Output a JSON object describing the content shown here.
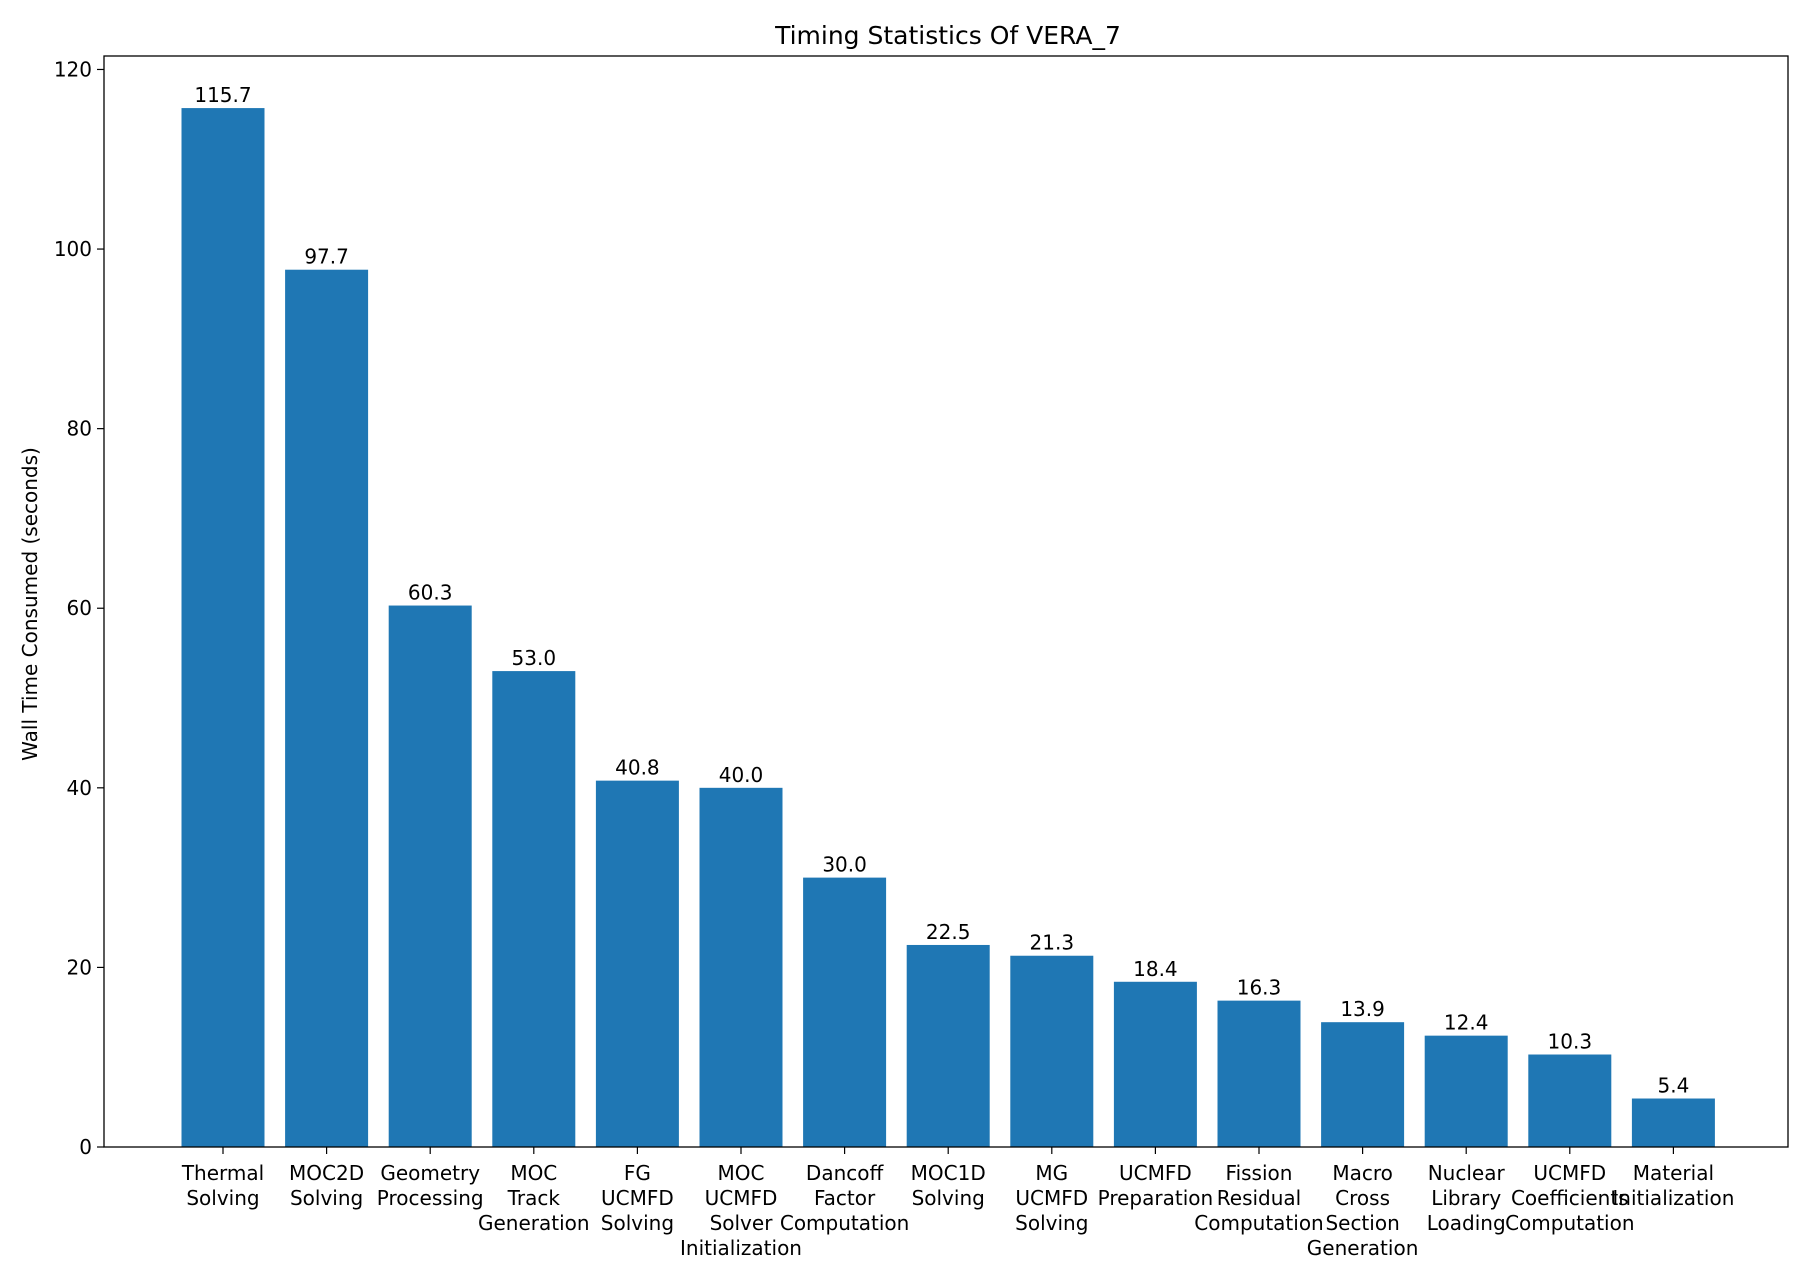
{
  "chart_data": {
    "type": "bar",
    "title": "Timing Statistics Of VERA_7",
    "xlabel": "",
    "ylabel": "Wall Time Consumed (seconds)",
    "ylim": [
      0,
      121.5
    ],
    "yticks": [
      0,
      20,
      40,
      60,
      80,
      100,
      120
    ],
    "grid": false,
    "bar_color": "#1f77b4",
    "categories": [
      [
        "Thermal",
        "Solving"
      ],
      [
        "MOC2D",
        "Solving"
      ],
      [
        "Geometry",
        "Processing"
      ],
      [
        "MOC",
        "Track",
        "Generation"
      ],
      [
        "FG",
        "UCMFD",
        "Solving"
      ],
      [
        "MOC",
        "UCMFD",
        "Solver",
        "Initialization"
      ],
      [
        "Dancoff",
        "Factor",
        "Computation"
      ],
      [
        "MOC1D",
        "Solving"
      ],
      [
        "MG",
        "UCMFD",
        "Solving"
      ],
      [
        "UCMFD",
        "Preparation"
      ],
      [
        "Fission",
        "Residual",
        "Computation"
      ],
      [
        "Macro",
        "Cross",
        "Section",
        "Generation"
      ],
      [
        "Nuclear",
        "Library",
        "Loading"
      ],
      [
        "UCMFD",
        "Coefficients",
        "Computation"
      ],
      [
        "Material",
        "Initialization"
      ]
    ],
    "values": [
      115.7,
      97.7,
      60.3,
      53.0,
      40.8,
      40.0,
      30.0,
      22.5,
      21.3,
      18.4,
      16.3,
      13.9,
      12.4,
      10.3,
      5.4
    ],
    "value_labels": [
      "115.7",
      "97.7",
      "60.3",
      "53.0",
      "40.8",
      "40.0",
      "30.0",
      "22.5",
      "21.3",
      "18.4",
      "16.3",
      "13.9",
      "12.4",
      "10.3",
      "5.4"
    ]
  }
}
